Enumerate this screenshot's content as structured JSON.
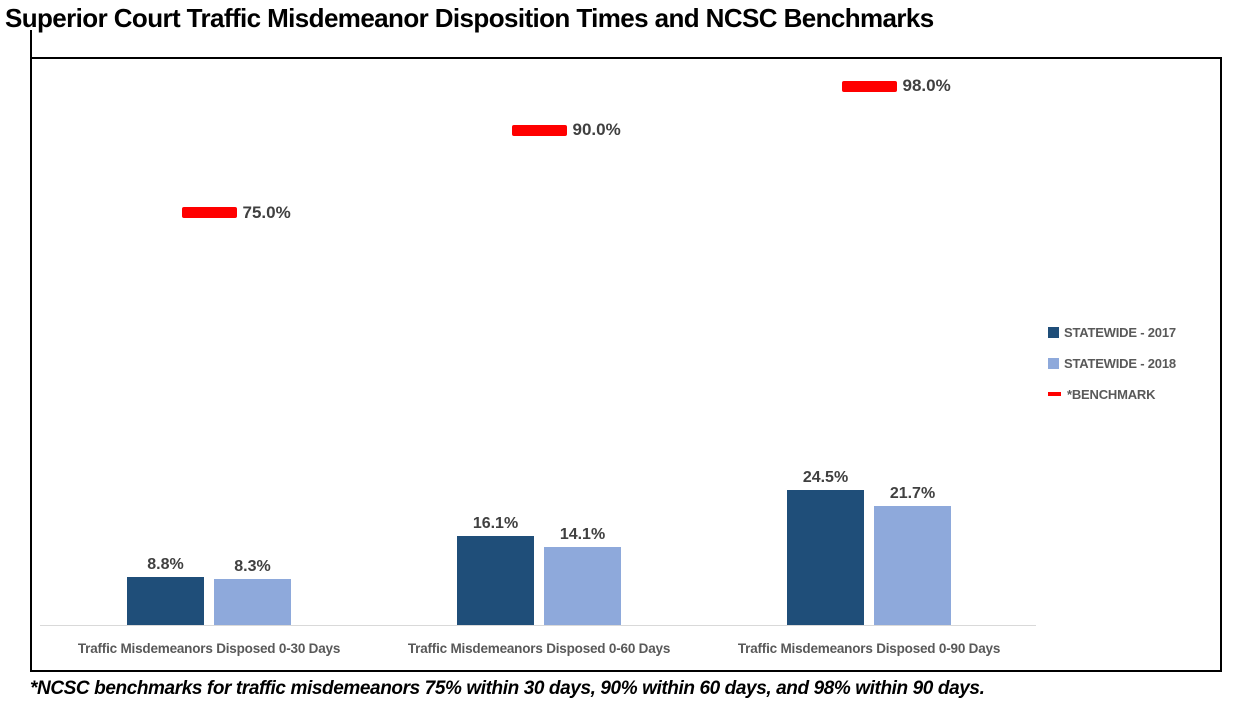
{
  "page_title": "Superior Court Traffic Misdemeanor Disposition Times and NCSC Benchmarks",
  "footnote": "*NCSC benchmarks for traffic misdemeanors 75% within 30 days, 90% within 60 days, and 98% within 90 days.",
  "colors": {
    "statewide_2017": "#1F4E79",
    "statewide_2018": "#8EA9DB",
    "benchmark": "#FF0000",
    "data_label": "#404040",
    "axis_text": "#595959",
    "axis_line": "#D9D9D9"
  },
  "legend": {
    "items": [
      {
        "label": "STATEWIDE - 2017",
        "swatch": "square",
        "color": "#1F4E79"
      },
      {
        "label": "STATEWIDE - 2018",
        "swatch": "square",
        "color": "#8EA9DB"
      },
      {
        "label": "*BENCHMARK",
        "swatch": "dash",
        "color": "#FF0000"
      }
    ]
  },
  "chart_data": {
    "type": "bar",
    "title": "Superior Court Traffic Misdemeanor Disposition Times and NCSC Benchmarks",
    "categories": [
      "Traffic Misdemeanors Disposed 0-30 Days",
      "Traffic Misdemeanors Disposed 0-60 Days",
      "Traffic Misdemeanors Disposed 0-90 Days"
    ],
    "series": [
      {
        "name": "STATEWIDE - 2017",
        "render": "bar",
        "color": "#1F4E79",
        "values": [
          8.8,
          16.1,
          24.5
        ],
        "labels": [
          "8.8%",
          "16.1%",
          "24.5%"
        ]
      },
      {
        "name": "STATEWIDE - 2018",
        "render": "bar",
        "color": "#8EA9DB",
        "values": [
          8.3,
          14.1,
          21.7
        ],
        "labels": [
          "8.3%",
          "14.1%",
          "21.7%"
        ]
      },
      {
        "name": "*BENCHMARK",
        "render": "marker",
        "color": "#FF0000",
        "values": [
          75.0,
          90.0,
          98.0
        ],
        "labels": [
          "75.0%",
          "90.0%",
          "98.0%"
        ]
      }
    ],
    "xlabel": "",
    "ylabel": "",
    "ylim": [
      0,
      103
    ],
    "grid": false,
    "y_axis_visible": false,
    "legend_position": "right"
  }
}
